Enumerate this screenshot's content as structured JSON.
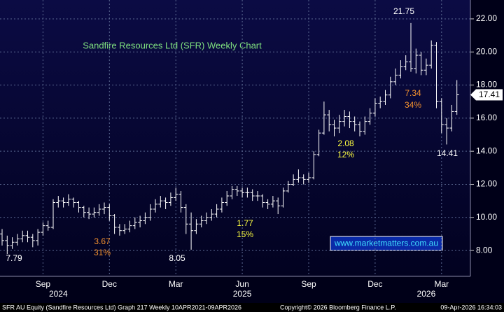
{
  "chart_data": {
    "type": "ohlc",
    "title": "Sandfire Resources Ltd (SFR) Weekly Chart",
    "color": "#ffffff",
    "categories": [
      null,
      null,
      null,
      null,
      null,
      null,
      null,
      null,
      "Sep",
      null,
      null,
      null,
      null,
      null,
      null,
      null,
      null,
      null,
      null,
      null,
      null,
      "Dec",
      null,
      null,
      null,
      null,
      null,
      null,
      null,
      null,
      null,
      null,
      null,
      null,
      "Mar",
      null,
      null,
      null,
      null,
      null,
      null,
      null,
      null,
      null,
      null,
      null,
      null,
      "Jun",
      null,
      null,
      null,
      null,
      null,
      null,
      null,
      null,
      null,
      null,
      null,
      null,
      "Sep",
      null,
      null,
      null,
      null,
      null,
      null,
      null,
      null,
      null,
      null,
      null,
      null,
      "Dec",
      null,
      null,
      null,
      null,
      null,
      null,
      null,
      null,
      null,
      null,
      null,
      null,
      "Mar",
      null,
      null,
      null
    ],
    "years": [
      null,
      null,
      null,
      null,
      null,
      null,
      null,
      null,
      null,
      null,
      null,
      "2024",
      null,
      null,
      null,
      null,
      null,
      null,
      null,
      null,
      null,
      null,
      null,
      null,
      null,
      null,
      null,
      null,
      null,
      null,
      null,
      null,
      null,
      null,
      null,
      null,
      null,
      null,
      null,
      null,
      null,
      null,
      null,
      null,
      null,
      null,
      null,
      "2025",
      null,
      null,
      null,
      null,
      null,
      null,
      null,
      null,
      null,
      null,
      null,
      null,
      null,
      null,
      null,
      null,
      null,
      null,
      null,
      null,
      null,
      null,
      null,
      null,
      null,
      null,
      null,
      null,
      null,
      null,
      null,
      null,
      null,
      null,
      null,
      "2026",
      null,
      null,
      null,
      null,
      null,
      null
    ],
    "open": [
      9.0,
      8.6,
      8.3,
      8.5,
      8.7,
      8.9,
      8.8,
      8.6,
      9.1,
      9.5,
      9.4,
      10.9,
      11.0,
      10.9,
      11.1,
      10.9,
      10.6,
      10.3,
      10.2,
      10.3,
      10.5,
      10.6,
      10.1,
      9.4,
      9.2,
      9.3,
      9.5,
      9.7,
      9.8,
      10.0,
      10.5,
      10.8,
      11.0,
      10.9,
      11.2,
      11.4,
      10.6,
      9.6,
      9.2,
      9.6,
      9.8,
      10.0,
      10.2,
      10.5,
      10.9,
      11.3,
      11.7,
      11.6,
      11.5,
      11.5,
      11.3,
      11.3,
      10.9,
      10.8,
      11.0,
      10.7,
      11.6,
      12.0,
      12.3,
      12.4,
      12.3,
      12.4,
      13.8,
      15.1,
      16.2,
      15.6,
      15.4,
      15.8,
      16.1,
      15.8,
      15.6,
      15.2,
      15.8,
      16.3,
      16.9,
      17.0,
      17.4,
      18.2,
      18.6,
      19.1,
      19.4,
      19.0,
      19.8,
      18.9,
      19.2,
      20.4,
      17.0,
      15.6,
      15.4,
      16.4
    ],
    "high": [
      9.3,
      8.9,
      8.8,
      9.0,
      9.2,
      9.2,
      9.0,
      9.3,
      9.7,
      9.8,
      11.1,
      11.3,
      11.2,
      11.4,
      11.2,
      11.0,
      10.7,
      10.6,
      10.6,
      10.8,
      10.9,
      10.8,
      10.2,
      9.6,
      9.6,
      9.8,
      10.0,
      10.1,
      10.3,
      10.8,
      11.1,
      11.3,
      11.2,
      11.5,
      11.8,
      11.6,
      10.8,
      10.3,
      9.9,
      10.1,
      10.3,
      10.5,
      10.8,
      11.2,
      11.6,
      11.9,
      11.9,
      11.8,
      11.8,
      11.7,
      11.6,
      11.4,
      11.1,
      11.3,
      11.2,
      11.8,
      12.2,
      12.6,
      12.9,
      12.6,
      12.7,
      14.0,
      15.3,
      17.0,
      16.5,
      15.9,
      16.2,
      16.5,
      16.4,
      16.1,
      15.8,
      16.1,
      16.6,
      17.2,
      17.3,
      17.7,
      18.5,
      19.0,
      19.5,
      19.8,
      21.75,
      20.2,
      20.0,
      19.6,
      20.7,
      20.6,
      17.2,
      16.0,
      16.8,
      18.3
    ],
    "low": [
      8.3,
      7.79,
      8.1,
      8.3,
      8.5,
      8.5,
      8.2,
      8.3,
      8.9,
      9.2,
      9.3,
      10.6,
      10.6,
      10.7,
      10.6,
      10.3,
      10.0,
      9.9,
      10.0,
      10.1,
      10.2,
      9.8,
      9.0,
      8.9,
      9.0,
      9.1,
      9.3,
      9.4,
      9.6,
      9.8,
      10.3,
      10.6,
      10.5,
      10.7,
      11.0,
      10.3,
      9.0,
      8.05,
      9.0,
      9.4,
      9.6,
      9.8,
      10.0,
      10.3,
      10.7,
      11.1,
      11.3,
      11.2,
      11.2,
      11.0,
      11.0,
      10.6,
      10.5,
      10.6,
      10.2,
      10.6,
      11.5,
      11.9,
      12.1,
      12.0,
      12.1,
      12.3,
      13.7,
      15.0,
      15.2,
      14.9,
      15.1,
      15.5,
      15.4,
      15.2,
      14.9,
      15.0,
      15.6,
      16.1,
      16.6,
      16.8,
      17.2,
      18.0,
      18.4,
      18.9,
      18.8,
      18.7,
      18.6,
      18.6,
      19.0,
      16.6,
      15.1,
      14.41,
      15.2,
      16.2
    ],
    "close": [
      8.6,
      8.3,
      8.5,
      8.7,
      8.9,
      8.8,
      8.6,
      9.1,
      9.5,
      9.4,
      10.9,
      11.0,
      10.9,
      11.1,
      10.9,
      10.6,
      10.3,
      10.2,
      10.3,
      10.5,
      10.6,
      10.1,
      9.4,
      9.2,
      9.3,
      9.5,
      9.7,
      9.8,
      10.0,
      10.5,
      10.8,
      11.0,
      10.9,
      11.2,
      11.4,
      10.6,
      9.6,
      9.2,
      9.6,
      9.8,
      10.0,
      10.2,
      10.5,
      10.9,
      11.3,
      11.7,
      11.6,
      11.5,
      11.5,
      11.3,
      11.3,
      10.9,
      10.8,
      11.0,
      10.7,
      11.6,
      12.0,
      12.3,
      12.4,
      12.3,
      12.4,
      13.8,
      15.1,
      16.2,
      15.6,
      15.4,
      15.8,
      16.1,
      15.8,
      15.6,
      15.2,
      15.8,
      16.3,
      16.9,
      17.0,
      17.4,
      18.2,
      18.6,
      19.1,
      19.4,
      19.0,
      19.8,
      18.9,
      19.2,
      20.4,
      17.0,
      15.6,
      15.4,
      16.4,
      17.41
    ],
    "ylim": [
      6.44,
      23.14
    ],
    "yticks": [
      {
        "value": 8,
        "label": "8.00"
      },
      {
        "value": 10,
        "label": "10.00"
      },
      {
        "value": 12,
        "label": "12.00"
      },
      {
        "value": 14,
        "label": "14.00"
      },
      {
        "value": 16,
        "label": "16.00"
      },
      {
        "value": 18,
        "label": "18.00"
      },
      {
        "value": 20,
        "label": "20.00"
      },
      {
        "value": 22,
        "label": "22.00"
      }
    ],
    "grid": true,
    "annotations": [
      {
        "text": "21.75",
        "color": "#ffffff"
      },
      {
        "text": "7.34",
        "color": "#f5922f"
      },
      {
        "text": "34%",
        "color": "#f5922f"
      },
      {
        "text": "2.08",
        "color": "#ffff40"
      },
      {
        "text": "12%",
        "color": "#ffff40"
      },
      {
        "text": "1.77",
        "color": "#ffff40"
      },
      {
        "text": "15%",
        "color": "#ffff40"
      },
      {
        "text": "3.67",
        "color": "#f5922f"
      },
      {
        "text": "31%",
        "color": "#f5922f"
      },
      {
        "text": "7.79",
        "color": "#ffffff"
      },
      {
        "text": "8.05",
        "color": "#ffffff"
      },
      {
        "text": "14.41",
        "color": "#ffffff"
      }
    ],
    "watermark": "www.marketmatters.com.au",
    "footer": [
      "SFR AU Equity (Sandfire Resources Ltd) Graph 217 Weekly 10APR2021-09APR2026",
      "Copyright© 2026 Bloomberg Finance L.P.",
      "09-Apr-2026 16:34:03"
    ]
  }
}
